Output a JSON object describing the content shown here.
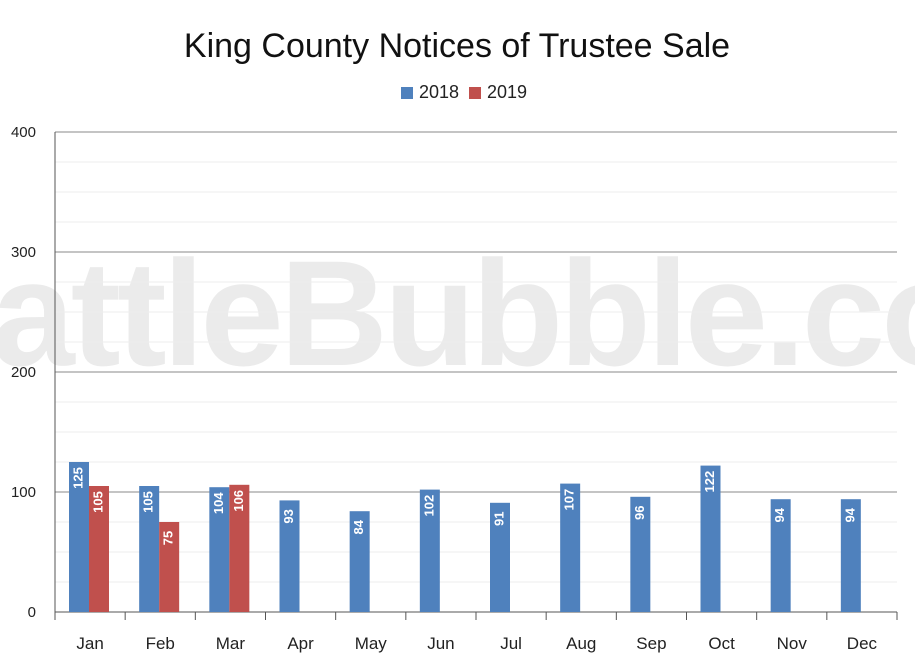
{
  "chart_data": {
    "type": "bar",
    "title": "King County Notices of Trustee Sale",
    "categories": [
      "Jan",
      "Feb",
      "Mar",
      "Apr",
      "May",
      "Jun",
      "Jul",
      "Aug",
      "Sep",
      "Oct",
      "Nov",
      "Dec"
    ],
    "series": [
      {
        "name": "2018",
        "color": "#4f81bd",
        "values": [
          125,
          105,
          104,
          93,
          84,
          102,
          91,
          107,
          96,
          122,
          94,
          94
        ]
      },
      {
        "name": "2019",
        "color": "#c0504d",
        "values": [
          105,
          75,
          106,
          null,
          null,
          null,
          null,
          null,
          null,
          null,
          null,
          null
        ]
      }
    ],
    "ylim": [
      0,
      400
    ],
    "yticks": [
      0,
      100,
      200,
      300,
      400
    ],
    "grid": true,
    "legend": "top-center",
    "data_labels": true,
    "watermark": "SeattleBubble.com"
  }
}
